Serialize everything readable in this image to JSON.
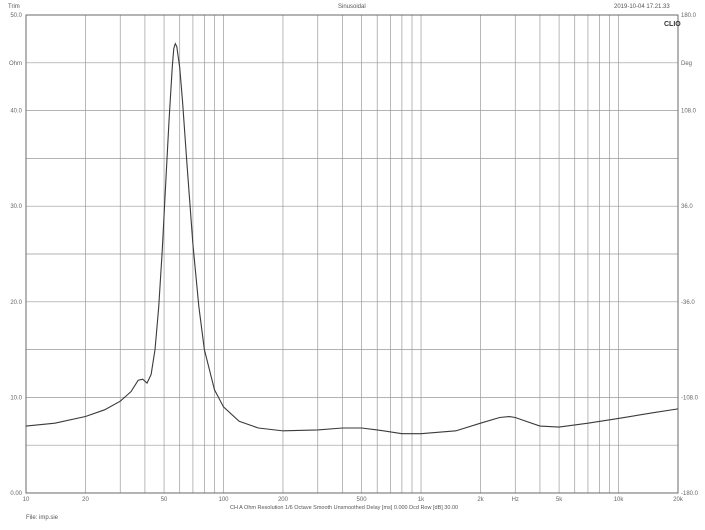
{
  "header": {
    "left": "Trim",
    "center": "Sinusoidal",
    "right": "2019-10-04 17.21.33"
  },
  "footer": {
    "settings": "CH A   Ohm   Resolution 1/6 Octave   Smooth Unsmoothed   Delay [ms] 0.000   Dcd Row [dB] 30.00",
    "file": "File: imp.sie"
  },
  "chart_data": {
    "type": "line",
    "title": "",
    "xlabel": "Hz",
    "ylabel": "Ohm",
    "y2label": "Deg",
    "brand": "CLIO",
    "xscale": "log",
    "xlim": [
      10,
      20000
    ],
    "ylim": [
      0,
      50
    ],
    "y2lim": [
      -180,
      180
    ],
    "grid": true,
    "x_tick_labels": [
      "10",
      "20",
      "50",
      "100",
      "200",
      "500",
      "1k",
      "2k",
      "Hz",
      "5k",
      "10k",
      "20k"
    ],
    "x_tick_values": [
      10,
      20,
      50,
      100,
      200,
      500,
      1000,
      2000,
      3000,
      5000,
      10000,
      20000
    ],
    "y_tick_labels": [
      "50.0",
      "Ohm",
      "40.0",
      "30.0",
      "20.0",
      "10.0",
      "0.00"
    ],
    "y_tick_values": [
      50,
      45,
      40,
      30,
      20,
      10,
      0
    ],
    "y2_tick_labels": [
      "180.0",
      "Deg",
      "108.0",
      "36.0",
      "-36.0",
      "-108.0",
      "-180.0"
    ],
    "y2_tick_values": [
      180,
      144,
      108,
      36,
      -36,
      -108,
      -180
    ],
    "series": [
      {
        "color": "#3a3a3a",
        "x": [
          10,
          14,
          20,
          25,
          30,
          34,
          37,
          39,
          41,
          43,
          45,
          47,
          49,
          51,
          53,
          55,
          56,
          57,
          58,
          60,
          62,
          65,
          70,
          75,
          80,
          90,
          100,
          120,
          150,
          200,
          300,
          400,
          500,
          600,
          800,
          1000,
          1500,
          2000,
          2500,
          2800,
          3000,
          3300,
          4000,
          5000,
          7000,
          10000,
          15000,
          20000
        ],
        "values": [
          7.0,
          7.3,
          8.0,
          8.7,
          9.6,
          10.6,
          11.8,
          11.9,
          11.5,
          12.4,
          15.0,
          19.5,
          25.5,
          32.5,
          39.0,
          44.5,
          46.5,
          47.0,
          46.7,
          44.5,
          41.0,
          35.0,
          26.0,
          19.5,
          15.0,
          10.8,
          9.0,
          7.5,
          6.8,
          6.5,
          6.6,
          6.8,
          6.8,
          6.6,
          6.2,
          6.2,
          6.5,
          7.3,
          7.9,
          8.0,
          7.9,
          7.6,
          7.0,
          6.9,
          7.3,
          7.8,
          8.4,
          8.8
        ]
      }
    ]
  }
}
